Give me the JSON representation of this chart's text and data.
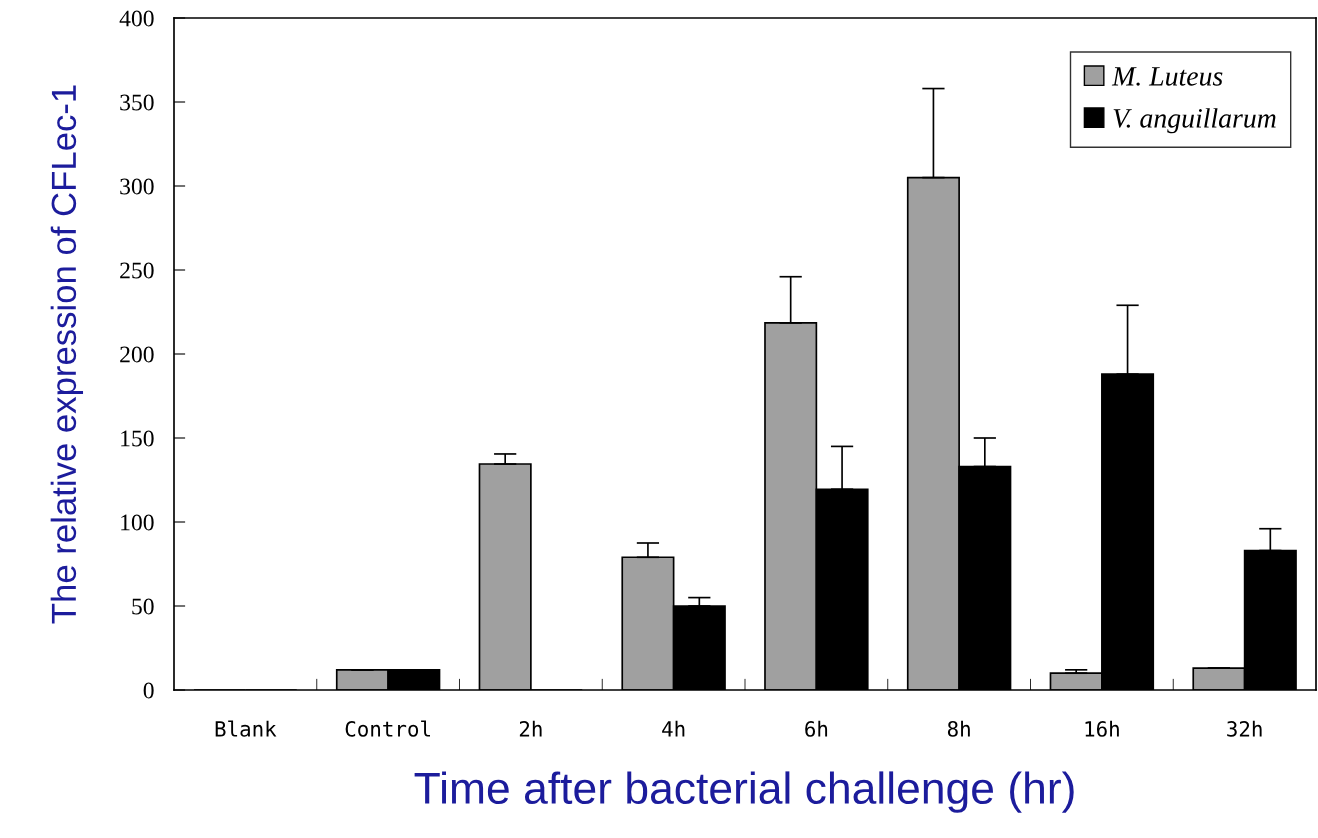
{
  "chart_data": {
    "type": "bar",
    "xlabel": "Time after bacterial challenge (hr)",
    "ylabel": "The relative expression of CFLec-1",
    "categories": [
      "Blank",
      "Control",
      "2h",
      "4h",
      "6h",
      "8h",
      "16h",
      "32h"
    ],
    "series": [
      {
        "name": "M. Luteus",
        "color": "#a0a0a0",
        "values": [
          null,
          12,
          134.5,
          79,
          218.5,
          305,
          10,
          13
        ],
        "errors": [
          null,
          [
            12,
            12
          ],
          [
            134.5,
            140.5
          ],
          [
            79,
            87.5
          ],
          [
            218.5,
            246
          ],
          [
            305,
            358
          ],
          [
            10,
            12
          ],
          [
            13,
            13
          ]
        ]
      },
      {
        "name": "V. anguillarum",
        "color": "#000000",
        "values": [
          null,
          12,
          null,
          50,
          119.5,
          133,
          188,
          83
        ],
        "errors": [
          null,
          [
            12,
            12
          ],
          null,
          [
            50,
            55
          ],
          [
            119.5,
            145
          ],
          [
            133,
            150
          ],
          [
            188,
            229
          ],
          [
            83,
            96
          ]
        ]
      }
    ],
    "ylim": [
      0,
      400
    ],
    "yticks": [
      0,
      50,
      100,
      150,
      200,
      250,
      300,
      350,
      400
    ],
    "grid": false,
    "legend": "top right"
  }
}
